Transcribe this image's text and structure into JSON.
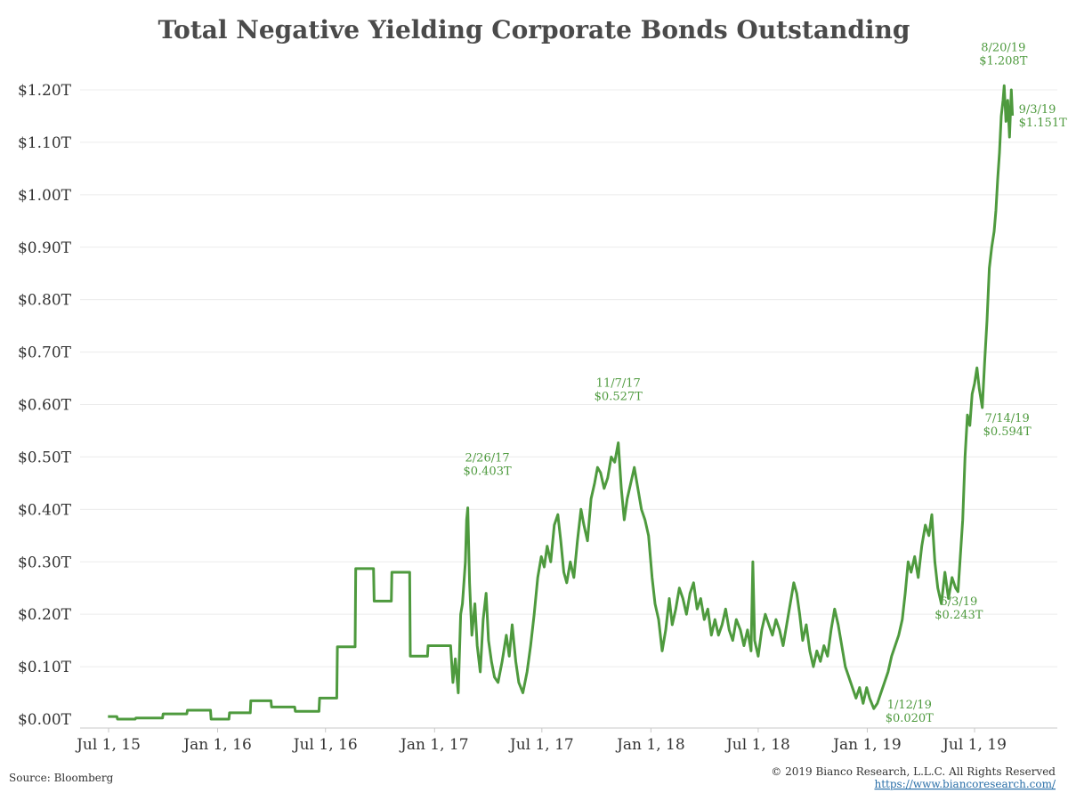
{
  "chart_data": {
    "type": "line",
    "title": "Total Negative Yielding Corporate Bonds Outstanding",
    "xlabel": "",
    "ylabel": "",
    "ylim": [
      0,
      1.25
    ],
    "y_ticks": [
      0,
      0.1,
      0.2,
      0.3,
      0.4,
      0.5,
      0.6,
      0.7,
      0.8,
      0.9,
      1.0,
      1.1,
      1.2
    ],
    "y_tick_labels": [
      "$0.00T",
      "$0.10T",
      "$0.20T",
      "$0.30T",
      "$0.40T",
      "$0.50T",
      "$0.60T",
      "$0.70T",
      "$0.80T",
      "$0.90T",
      "$1.00T",
      "$1.10T",
      "$1.20T"
    ],
    "x_ticks": [
      "2015-07-01",
      "2016-01-01",
      "2016-07-01",
      "2017-01-01",
      "2017-07-01",
      "2018-01-01",
      "2018-07-01",
      "2019-01-01",
      "2019-07-01"
    ],
    "x_tick_labels": [
      "Jul 1, 15",
      "Jan 1, 16",
      "Jul 1, 16",
      "Jan 1, 17",
      "Jul 1, 17",
      "Jan 1, 18",
      "Jul 1, 18",
      "Jan 1, 19",
      "Jul 1, 19"
    ],
    "xlim": [
      "2015-06-01",
      "2019-10-15"
    ],
    "grid": true,
    "color": "#4e9a3e",
    "series": [
      {
        "points": [
          [
            "2015-06-30",
            0.005
          ],
          [
            "2015-07-15",
            0.005
          ],
          [
            "2015-07-16",
            0.0
          ],
          [
            "2015-08-15",
            0.0
          ],
          [
            "2015-08-16",
            0.002
          ],
          [
            "2015-09-30",
            0.002
          ],
          [
            "2015-10-01",
            0.01
          ],
          [
            "2015-11-10",
            0.01
          ],
          [
            "2015-11-11",
            0.017
          ],
          [
            "2015-12-20",
            0.017
          ],
          [
            "2015-12-21",
            0.0
          ],
          [
            "2016-01-20",
            0.0
          ],
          [
            "2016-01-21",
            0.012
          ],
          [
            "2016-02-25",
            0.012
          ],
          [
            "2016-02-26",
            0.035
          ],
          [
            "2016-03-31",
            0.035
          ],
          [
            "2016-04-01",
            0.023
          ],
          [
            "2016-05-10",
            0.023
          ],
          [
            "2016-05-11",
            0.015
          ],
          [
            "2016-06-20",
            0.015
          ],
          [
            "2016-06-21",
            0.04
          ],
          [
            "2016-07-20",
            0.04
          ],
          [
            "2016-07-21",
            0.138
          ],
          [
            "2016-08-20",
            0.138
          ],
          [
            "2016-08-21",
            0.287
          ],
          [
            "2016-09-20",
            0.287
          ],
          [
            "2016-09-21",
            0.225
          ],
          [
            "2016-10-20",
            0.225
          ],
          [
            "2016-10-21",
            0.28
          ],
          [
            "2016-11-20",
            0.28
          ],
          [
            "2016-11-21",
            0.12
          ],
          [
            "2016-12-20",
            0.12
          ],
          [
            "2016-12-21",
            0.14
          ],
          [
            "2017-01-20",
            0.14
          ],
          [
            "2017-01-28",
            0.14
          ],
          [
            "2017-02-01",
            0.07
          ],
          [
            "2017-02-05",
            0.115
          ],
          [
            "2017-02-10",
            0.05
          ],
          [
            "2017-02-14",
            0.2
          ],
          [
            "2017-02-17",
            0.22
          ],
          [
            "2017-02-22",
            0.3
          ],
          [
            "2017-02-24",
            0.38
          ],
          [
            "2017-02-26",
            0.403
          ],
          [
            "2017-03-01",
            0.26
          ],
          [
            "2017-03-05",
            0.16
          ],
          [
            "2017-03-10",
            0.22
          ],
          [
            "2017-03-14",
            0.14
          ],
          [
            "2017-03-19",
            0.09
          ],
          [
            "2017-03-24",
            0.19
          ],
          [
            "2017-03-29",
            0.24
          ],
          [
            "2017-04-02",
            0.15
          ],
          [
            "2017-04-07",
            0.11
          ],
          [
            "2017-04-12",
            0.08
          ],
          [
            "2017-04-18",
            0.07
          ],
          [
            "2017-04-25",
            0.11
          ],
          [
            "2017-05-02",
            0.16
          ],
          [
            "2017-05-07",
            0.12
          ],
          [
            "2017-05-12",
            0.18
          ],
          [
            "2017-05-18",
            0.11
          ],
          [
            "2017-05-23",
            0.07
          ],
          [
            "2017-05-30",
            0.05
          ],
          [
            "2017-06-06",
            0.09
          ],
          [
            "2017-06-12",
            0.14
          ],
          [
            "2017-06-18",
            0.2
          ],
          [
            "2017-06-24",
            0.27
          ],
          [
            "2017-06-30",
            0.31
          ],
          [
            "2017-07-05",
            0.29
          ],
          [
            "2017-07-10",
            0.33
          ],
          [
            "2017-07-16",
            0.3
          ],
          [
            "2017-07-22",
            0.37
          ],
          [
            "2017-07-28",
            0.39
          ],
          [
            "2017-08-02",
            0.34
          ],
          [
            "2017-08-07",
            0.28
          ],
          [
            "2017-08-12",
            0.26
          ],
          [
            "2017-08-18",
            0.3
          ],
          [
            "2017-08-24",
            0.27
          ],
          [
            "2017-08-30",
            0.34
          ],
          [
            "2017-09-05",
            0.4
          ],
          [
            "2017-09-10",
            0.37
          ],
          [
            "2017-09-16",
            0.34
          ],
          [
            "2017-09-22",
            0.42
          ],
          [
            "2017-09-28",
            0.45
          ],
          [
            "2017-10-03",
            0.48
          ],
          [
            "2017-10-08",
            0.47
          ],
          [
            "2017-10-14",
            0.44
          ],
          [
            "2017-10-20",
            0.46
          ],
          [
            "2017-10-26",
            0.5
          ],
          [
            "2017-11-01",
            0.49
          ],
          [
            "2017-11-07",
            0.527
          ],
          [
            "2017-11-12",
            0.44
          ],
          [
            "2017-11-17",
            0.38
          ],
          [
            "2017-11-22",
            0.42
          ],
          [
            "2017-11-28",
            0.45
          ],
          [
            "2017-12-04",
            0.48
          ],
          [
            "2017-12-10",
            0.44
          ],
          [
            "2017-12-16",
            0.4
          ],
          [
            "2017-12-22",
            0.38
          ],
          [
            "2017-12-28",
            0.35
          ],
          [
            "2018-01-03",
            0.27
          ],
          [
            "2018-01-08",
            0.22
          ],
          [
            "2018-01-14",
            0.19
          ],
          [
            "2018-01-20",
            0.13
          ],
          [
            "2018-01-26",
            0.17
          ],
          [
            "2018-02-01",
            0.23
          ],
          [
            "2018-02-06",
            0.18
          ],
          [
            "2018-02-12",
            0.21
          ],
          [
            "2018-02-18",
            0.25
          ],
          [
            "2018-02-24",
            0.23
          ],
          [
            "2018-03-02",
            0.2
          ],
          [
            "2018-03-08",
            0.24
          ],
          [
            "2018-03-14",
            0.26
          ],
          [
            "2018-03-20",
            0.21
          ],
          [
            "2018-03-26",
            0.23
          ],
          [
            "2018-04-01",
            0.19
          ],
          [
            "2018-04-07",
            0.21
          ],
          [
            "2018-04-13",
            0.16
          ],
          [
            "2018-04-19",
            0.19
          ],
          [
            "2018-04-25",
            0.16
          ],
          [
            "2018-05-01",
            0.18
          ],
          [
            "2018-05-07",
            0.21
          ],
          [
            "2018-05-13",
            0.17
          ],
          [
            "2018-05-19",
            0.15
          ],
          [
            "2018-05-25",
            0.19
          ],
          [
            "2018-06-01",
            0.17
          ],
          [
            "2018-06-07",
            0.14
          ],
          [
            "2018-06-13",
            0.17
          ],
          [
            "2018-06-19",
            0.13
          ],
          [
            "2018-06-22",
            0.3
          ],
          [
            "2018-06-25",
            0.15
          ],
          [
            "2018-07-01",
            0.12
          ],
          [
            "2018-07-07",
            0.17
          ],
          [
            "2018-07-13",
            0.2
          ],
          [
            "2018-07-19",
            0.18
          ],
          [
            "2018-07-25",
            0.16
          ],
          [
            "2018-07-31",
            0.19
          ],
          [
            "2018-08-06",
            0.17
          ],
          [
            "2018-08-12",
            0.14
          ],
          [
            "2018-08-18",
            0.18
          ],
          [
            "2018-08-24",
            0.22
          ],
          [
            "2018-08-30",
            0.26
          ],
          [
            "2018-09-04",
            0.24
          ],
          [
            "2018-09-09",
            0.2
          ],
          [
            "2018-09-14",
            0.15
          ],
          [
            "2018-09-20",
            0.18
          ],
          [
            "2018-09-26",
            0.13
          ],
          [
            "2018-10-02",
            0.1
          ],
          [
            "2018-10-08",
            0.13
          ],
          [
            "2018-10-14",
            0.11
          ],
          [
            "2018-10-20",
            0.14
          ],
          [
            "2018-10-26",
            0.12
          ],
          [
            "2018-11-01",
            0.17
          ],
          [
            "2018-11-07",
            0.21
          ],
          [
            "2018-11-13",
            0.18
          ],
          [
            "2018-11-19",
            0.14
          ],
          [
            "2018-11-25",
            0.1
          ],
          [
            "2018-12-01",
            0.08
          ],
          [
            "2018-12-07",
            0.06
          ],
          [
            "2018-12-13",
            0.04
          ],
          [
            "2018-12-19",
            0.06
          ],
          [
            "2018-12-25",
            0.03
          ],
          [
            "2018-12-31",
            0.06
          ],
          [
            "2019-01-05",
            0.04
          ],
          [
            "2019-01-12",
            0.02
          ],
          [
            "2019-01-18",
            0.03
          ],
          [
            "2019-01-24",
            0.05
          ],
          [
            "2019-01-30",
            0.07
          ],
          [
            "2019-02-05",
            0.09
          ],
          [
            "2019-02-11",
            0.12
          ],
          [
            "2019-02-17",
            0.14
          ],
          [
            "2019-02-23",
            0.16
          ],
          [
            "2019-03-01",
            0.19
          ],
          [
            "2019-03-06",
            0.24
          ],
          [
            "2019-03-11",
            0.3
          ],
          [
            "2019-03-16",
            0.28
          ],
          [
            "2019-03-22",
            0.31
          ],
          [
            "2019-03-28",
            0.27
          ],
          [
            "2019-04-03",
            0.33
          ],
          [
            "2019-04-09",
            0.37
          ],
          [
            "2019-04-15",
            0.35
          ],
          [
            "2019-04-20",
            0.39
          ],
          [
            "2019-04-25",
            0.3
          ],
          [
            "2019-04-30",
            0.25
          ],
          [
            "2019-05-06",
            0.22
          ],
          [
            "2019-05-12",
            0.28
          ],
          [
            "2019-05-18",
            0.23
          ],
          [
            "2019-05-24",
            0.27
          ],
          [
            "2019-05-30",
            0.25
          ],
          [
            "2019-06-03",
            0.243
          ],
          [
            "2019-06-07",
            0.31
          ],
          [
            "2019-06-11",
            0.38
          ],
          [
            "2019-06-15",
            0.5
          ],
          [
            "2019-06-19",
            0.58
          ],
          [
            "2019-06-23",
            0.56
          ],
          [
            "2019-06-27",
            0.62
          ],
          [
            "2019-07-01",
            0.64
          ],
          [
            "2019-07-05",
            0.67
          ],
          [
            "2019-07-09",
            0.63
          ],
          [
            "2019-07-14",
            0.594
          ],
          [
            "2019-07-18",
            0.68
          ],
          [
            "2019-07-22",
            0.76
          ],
          [
            "2019-07-26",
            0.86
          ],
          [
            "2019-07-30",
            0.9
          ],
          [
            "2019-08-03",
            0.93
          ],
          [
            "2019-08-06",
            0.97
          ],
          [
            "2019-08-09",
            1.03
          ],
          [
            "2019-08-12",
            1.08
          ],
          [
            "2019-08-15",
            1.15
          ],
          [
            "2019-08-18",
            1.18
          ],
          [
            "2019-08-20",
            1.208
          ],
          [
            "2019-08-23",
            1.14
          ],
          [
            "2019-08-26",
            1.18
          ],
          [
            "2019-08-29",
            1.11
          ],
          [
            "2019-09-01",
            1.2
          ],
          [
            "2019-09-03",
            1.151
          ]
        ]
      }
    ],
    "annotations": [
      {
        "date_label": "2/26/17",
        "value_label": "$0.403T",
        "x": "2017-02-26",
        "y": 0.403
      },
      {
        "date_label": "11/7/17",
        "value_label": "$0.527T",
        "x": "2017-11-07",
        "y": 0.527
      },
      {
        "date_label": "1/12/19",
        "value_label": "$0.020T",
        "x": "2019-01-12",
        "y": 0.02
      },
      {
        "date_label": "6/3/19",
        "value_label": "$0.243T",
        "x": "2019-06-03",
        "y": 0.243
      },
      {
        "date_label": "7/14/19",
        "value_label": "$0.594T",
        "x": "2019-07-14",
        "y": 0.594
      },
      {
        "date_label": "8/20/19",
        "value_label": "$1.208T",
        "x": "2019-08-20",
        "y": 1.208
      },
      {
        "date_label": "9/3/19",
        "value_label": "$1.151T",
        "x": "2019-09-03",
        "y": 1.151
      }
    ]
  },
  "footer": {
    "source": "Source: Bloomberg",
    "copyright": "© 2019 Bianco Research, L.L.C. All Rights Reserved",
    "url": "https://www.biancoresearch.com/"
  }
}
